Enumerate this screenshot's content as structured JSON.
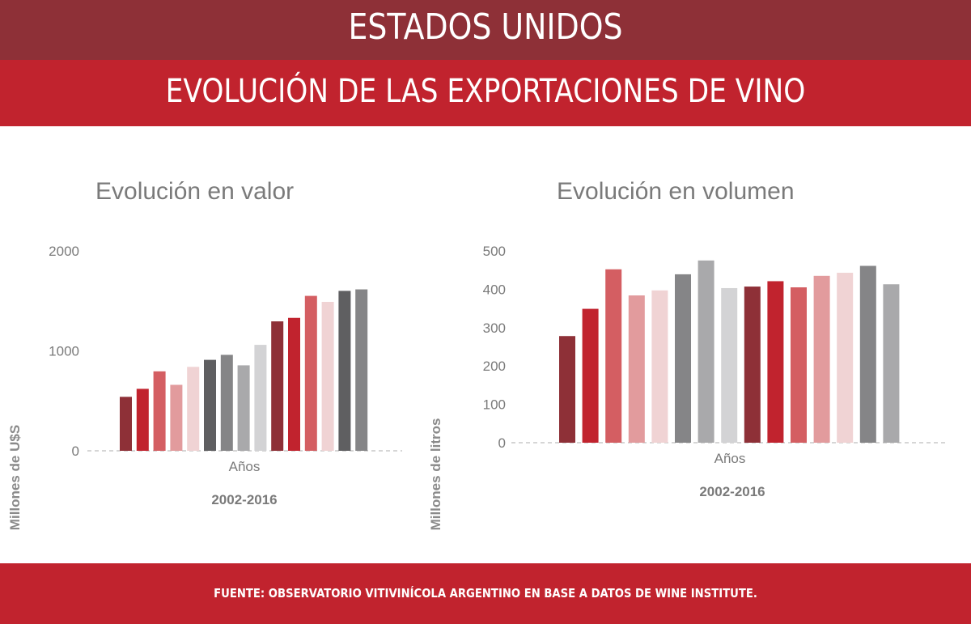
{
  "header": {
    "country": "ESTADOS UNIDOS",
    "subtitle": "EVOLUCIÓN DE LAS EXPORTACIONES DE VINO"
  },
  "footer": {
    "source": "FUENTE: OBSERVATORIO VITIVINÍCOLA ARGENTINO EN BASE A DATOS DE WINE INSTITUTE."
  },
  "colors": {
    "header_dark": "#8e3037",
    "header_red": "#c1232e",
    "bar_palette": [
      "#8e3037",
      "#c1232e",
      "#d45e62",
      "#e29b9d",
      "#f0d3d4",
      "#5f5f61",
      "#858587",
      "#a9a9ab",
      "#d3d3d5"
    ]
  },
  "chart_data": [
    {
      "type": "bar",
      "title": "Evolución en valor",
      "xlabel": "Años",
      "ylabel": "Millones de U$S",
      "period": "2002-2016",
      "ylim": [
        0,
        2000
      ],
      "yticks": [
        0,
        1000,
        2000
      ],
      "grid": false,
      "values": [
        540,
        620,
        795,
        660,
        840,
        910,
        960,
        855,
        1060,
        1295,
        1330,
        1550,
        1490,
        1600,
        1615
      ],
      "bar_colors": [
        "#8e3037",
        "#c1232e",
        "#d45e62",
        "#e29b9d",
        "#f0d3d4",
        "#5f5f61",
        "#858587",
        "#a9a9ab",
        "#d3d3d5",
        "#8e3037",
        "#c1232e",
        "#d45e62",
        "#f0d3d4",
        "#5f5f61",
        "#858587"
      ]
    },
    {
      "type": "bar",
      "title": "Evolución en volumen",
      "xlabel": "Años",
      "ylabel": "Millones de litros",
      "period": "2002-2016",
      "ylim": [
        0,
        500
      ],
      "yticks": [
        0,
        100,
        200,
        300,
        400,
        500
      ],
      "grid": false,
      "values": [
        278,
        349,
        452,
        384,
        397,
        439,
        475,
        403,
        407,
        421,
        405,
        435,
        443,
        461,
        413
      ],
      "bar_colors": [
        "#8e3037",
        "#c1232e",
        "#d45e62",
        "#e29b9d",
        "#f0d3d4",
        "#858587",
        "#a9a9ab",
        "#d3d3d5",
        "#8e3037",
        "#c1232e",
        "#d45e62",
        "#e29b9d",
        "#f0d3d4",
        "#858587",
        "#a9a9ab"
      ]
    }
  ]
}
